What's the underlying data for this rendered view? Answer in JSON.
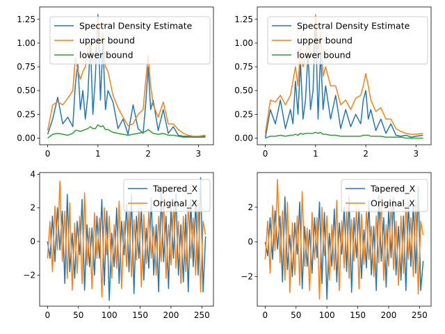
{
  "figure": {
    "background": "#ffffff"
  },
  "colors": {
    "blue": "#1f77b4",
    "orange": "#ff7f0e",
    "green": "#2ca02c"
  },
  "chart_data": [
    {
      "id": "psd-left",
      "type": "line",
      "title": "",
      "xlabel": "",
      "ylabel": "",
      "xlim": [
        -0.16,
        3.3
      ],
      "ylim": [
        -0.07,
        1.38
      ],
      "xticks": [
        0,
        1,
        2,
        3
      ],
      "xtick_labels": [
        "0",
        "1",
        "2",
        "3"
      ],
      "yticks": [
        0,
        0.25,
        0.5,
        0.75,
        1.0,
        1.25
      ],
      "ytick_labels": [
        "0.00",
        "0.25",
        "0.50",
        "0.75",
        "1.00",
        "1.25"
      ],
      "grid": false,
      "legend": "top-right",
      "x": [
        0.0,
        0.1,
        0.2,
        0.3,
        0.4,
        0.5,
        0.55,
        0.6,
        0.65,
        0.7,
        0.75,
        0.8,
        0.85,
        0.9,
        0.95,
        1.0,
        1.05,
        1.1,
        1.15,
        1.2,
        1.3,
        1.4,
        1.5,
        1.6,
        1.7,
        1.8,
        1.9,
        1.95,
        2.0,
        2.05,
        2.1,
        2.2,
        2.3,
        2.4,
        2.5,
        2.6,
        2.7,
        2.8,
        2.9,
        3.0,
        3.14
      ],
      "series": [
        {
          "name": "Spectral Density Estimate",
          "color": "#1f77b4",
          "values": [
            0.04,
            0.2,
            0.43,
            0.15,
            0.22,
            0.12,
            0.56,
            0.78,
            0.3,
            0.5,
            0.2,
            0.45,
            1.02,
            0.25,
            0.65,
            1.3,
            0.4,
            1.0,
            0.3,
            0.5,
            0.38,
            0.1,
            0.2,
            0.04,
            0.35,
            0.1,
            0.05,
            0.35,
            0.75,
            0.3,
            0.4,
            0.08,
            0.3,
            0.05,
            0.12,
            0.03,
            0.02,
            0.02,
            0.01,
            0.01,
            0.02
          ]
        },
        {
          "name": "upper bound",
          "color": "#ff7f0e",
          "values": [
            0.08,
            0.35,
            0.38,
            0.35,
            0.42,
            0.5,
            0.85,
            0.72,
            0.62,
            0.7,
            0.75,
            0.95,
            1.0,
            0.8,
            0.85,
            1.25,
            1.0,
            1.1,
            0.75,
            0.7,
            0.45,
            0.32,
            0.22,
            0.13,
            0.15,
            0.25,
            0.3,
            0.6,
            0.87,
            0.55,
            0.35,
            0.22,
            0.38,
            0.15,
            0.15,
            0.09,
            0.05,
            0.03,
            0.02,
            0.02,
            0.03
          ]
        },
        {
          "name": "lower bound",
          "color": "#2ca02c",
          "values": [
            0.0,
            0.04,
            0.05,
            0.04,
            0.03,
            0.05,
            0.08,
            0.08,
            0.07,
            0.08,
            0.09,
            0.1,
            0.12,
            0.1,
            0.1,
            0.14,
            0.12,
            0.13,
            0.09,
            0.09,
            0.06,
            0.05,
            0.04,
            0.03,
            0.04,
            0.05,
            0.06,
            0.07,
            0.09,
            0.07,
            0.05,
            0.04,
            0.05,
            0.03,
            0.03,
            0.02,
            0.01,
            0.01,
            0.01,
            0.01,
            0.01
          ]
        }
      ]
    },
    {
      "id": "psd-right",
      "type": "line",
      "title": "",
      "xlabel": "",
      "ylabel": "",
      "xlim": [
        -0.16,
        3.3
      ],
      "ylim": [
        -0.07,
        1.38
      ],
      "xticks": [
        0,
        1,
        2,
        3
      ],
      "xtick_labels": [
        "0",
        "1",
        "2",
        "3"
      ],
      "yticks": [
        0,
        0.25,
        0.5,
        0.75,
        1.0,
        1.25
      ],
      "ytick_labels": [
        "0.00",
        "0.25",
        "0.50",
        "0.75",
        "1.00",
        "1.25"
      ],
      "grid": false,
      "legend": "top-right",
      "x": [
        0.0,
        0.1,
        0.2,
        0.3,
        0.4,
        0.5,
        0.55,
        0.6,
        0.65,
        0.7,
        0.75,
        0.8,
        0.85,
        0.9,
        0.95,
        1.0,
        1.05,
        1.1,
        1.15,
        1.2,
        1.3,
        1.4,
        1.5,
        1.6,
        1.7,
        1.8,
        1.9,
        1.95,
        2.0,
        2.05,
        2.1,
        2.2,
        2.3,
        2.4,
        2.5,
        2.6,
        2.7,
        2.8,
        2.9,
        3.0,
        3.14
      ],
      "series": [
        {
          "name": "Spectral Density Estimate",
          "color": "#1f77b4",
          "values": [
            0.0,
            0.3,
            0.15,
            0.4,
            0.1,
            0.3,
            0.15,
            0.6,
            0.25,
            0.8,
            0.2,
            0.4,
            0.9,
            0.3,
            0.5,
            1.25,
            0.2,
            0.9,
            0.3,
            0.55,
            0.2,
            0.45,
            0.1,
            0.3,
            0.12,
            0.25,
            0.15,
            0.4,
            0.5,
            0.2,
            0.3,
            0.08,
            0.2,
            0.05,
            0.15,
            0.03,
            0.02,
            0.03,
            0.01,
            0.02,
            0.03
          ]
        },
        {
          "name": "upper bound",
          "color": "#ff7f0e",
          "values": [
            0.05,
            0.4,
            0.38,
            0.45,
            0.35,
            0.45,
            0.6,
            0.75,
            0.55,
            0.95,
            0.75,
            0.85,
            1.0,
            0.9,
            0.85,
            1.3,
            0.9,
            1.1,
            0.65,
            0.75,
            0.55,
            0.55,
            0.35,
            0.4,
            0.3,
            0.42,
            0.45,
            0.55,
            0.68,
            0.55,
            0.4,
            0.28,
            0.32,
            0.2,
            0.2,
            0.1,
            0.07,
            0.05,
            0.04,
            0.04,
            0.05
          ]
        },
        {
          "name": "lower bound",
          "color": "#2ca02c",
          "values": [
            0.0,
            0.02,
            0.02,
            0.03,
            0.02,
            0.03,
            0.03,
            0.04,
            0.03,
            0.05,
            0.04,
            0.05,
            0.05,
            0.05,
            0.05,
            0.06,
            0.05,
            0.06,
            0.04,
            0.04,
            0.03,
            0.03,
            0.02,
            0.02,
            0.02,
            0.02,
            0.02,
            0.03,
            0.03,
            0.03,
            0.02,
            0.02,
            0.02,
            0.01,
            0.01,
            0.01,
            0.01,
            0.0,
            0.0,
            0.0,
            0.0
          ]
        }
      ]
    },
    {
      "id": "signal-left",
      "type": "line",
      "title": "",
      "xlabel": "",
      "ylabel": "",
      "xlim": [
        -12.8,
        268.8
      ],
      "ylim": [
        -3.85,
        4.1
      ],
      "xticks": [
        0,
        50,
        100,
        150,
        200,
        250
      ],
      "xtick_labels": [
        "0",
        "50",
        "100",
        "150",
        "200",
        "250"
      ],
      "yticks": [
        -2,
        0,
        2,
        4
      ],
      "ytick_labels": [
        "−2",
        "0",
        "2",
        "4"
      ],
      "grid": false,
      "legend": "top-right",
      "x": [
        0,
        4,
        8,
        12,
        16,
        20,
        24,
        28,
        32,
        36,
        40,
        44,
        48,
        52,
        56,
        60,
        64,
        68,
        72,
        76,
        80,
        84,
        88,
        92,
        96,
        100,
        104,
        108,
        112,
        116,
        120,
        124,
        128,
        132,
        136,
        140,
        144,
        148,
        152,
        156,
        160,
        164,
        168,
        172,
        176,
        180,
        184,
        188,
        192,
        196,
        200,
        204,
        208,
        212,
        216,
        220,
        224,
        228,
        232,
        236,
        240,
        244,
        248,
        252,
        256
      ],
      "series": [
        {
          "name": "Tapered_X",
          "color": "#1f77b4",
          "values": [
            0.0,
            -1.0,
            1.5,
            -1.2,
            2.0,
            -0.5,
            1.8,
            -2.5,
            2.8,
            -1.8,
            0.5,
            -2.2,
            1.2,
            -0.8,
            2.5,
            -2.9,
            1.0,
            -1.5,
            0.8,
            -2.0,
            1.5,
            -1.0,
            2.5,
            -2.6,
            1.8,
            -3.5,
            0.5,
            -1.5,
            2.0,
            -2.5,
            1.2,
            -0.8,
            2.2,
            -1.8,
            2.8,
            -3.1,
            1.5,
            -1.0,
            2.0,
            -2.3,
            0.8,
            -1.6,
            2.6,
            -2.0,
            1.0,
            -3.0,
            2.9,
            -1.2,
            1.5,
            -2.8,
            2.0,
            -1.0,
            2.8,
            -2.0,
            1.0,
            -2.4,
            1.6,
            -3.0,
            2.5,
            -1.5,
            2.4,
            -2.0,
            3.8,
            -3.0,
            0.3
          ]
        },
        {
          "name": "Original_X",
          "color": "#ff7f0e",
          "values": [
            -1.0,
            1.2,
            -1.8,
            2.1,
            -0.5,
            3.6,
            -1.2,
            1.8,
            -2.2,
            2.3,
            -2.9,
            1.1,
            -1.9,
            1.5,
            -2.5,
            2.9,
            -1.4,
            0.8,
            -2.8,
            1.7,
            -1.0,
            1.4,
            -3.3,
            2.0,
            -0.8,
            1.5,
            -2.2,
            1.0,
            -1.6,
            2.4,
            -2.8,
            1.2,
            -1.5,
            1.8,
            -2.1,
            1.3,
            -1.1,
            2.0,
            -2.7,
            1.6,
            -1.3,
            1.8,
            -1.0,
            0.9,
            -2.0,
            1.5,
            -1.2,
            2.6,
            -2.2,
            1.0,
            -1.4,
            2.3,
            -1.6,
            1.2,
            -2.5,
            1.5,
            -1.8,
            2.2,
            -1.0,
            1.4,
            -2.0,
            2.4,
            -3.0,
            1.2,
            0.4
          ]
        }
      ]
    },
    {
      "id": "signal-right",
      "type": "line",
      "title": "",
      "xlabel": "",
      "ylabel": "",
      "xlim": [
        -12.8,
        268.8
      ],
      "ylim": [
        -3.7,
        4.0
      ],
      "xticks": [
        0,
        50,
        100,
        150,
        200,
        250
      ],
      "xtick_labels": [
        "0",
        "50",
        "100",
        "150",
        "200",
        "250"
      ],
      "yticks": [
        -2,
        0,
        2
      ],
      "ytick_labels": [
        "−2",
        "0",
        "2"
      ],
      "grid": false,
      "legend": "top-right",
      "x": [
        0,
        4,
        8,
        12,
        16,
        20,
        24,
        28,
        32,
        36,
        40,
        44,
        48,
        52,
        56,
        60,
        64,
        68,
        72,
        76,
        80,
        84,
        88,
        92,
        96,
        100,
        104,
        108,
        112,
        116,
        120,
        124,
        128,
        132,
        136,
        140,
        144,
        148,
        152,
        156,
        160,
        164,
        168,
        172,
        176,
        180,
        184,
        188,
        192,
        196,
        200,
        204,
        208,
        212,
        216,
        220,
        224,
        228,
        232,
        236,
        240,
        244,
        248,
        252,
        256
      ],
      "series": [
        {
          "name": "Tapered_X",
          "color": "#1f77b4",
          "values": [
            0.0,
            -0.8,
            1.4,
            -1.0,
            1.8,
            -0.4,
            1.5,
            -2.3,
            2.6,
            -1.6,
            0.4,
            -2.0,
            1.1,
            -0.7,
            2.3,
            -2.7,
            0.9,
            -1.4,
            0.7,
            -1.8,
            1.4,
            -0.9,
            2.3,
            -2.4,
            1.7,
            -3.3,
            0.5,
            -1.4,
            1.9,
            -2.3,
            1.1,
            -0.7,
            2.0,
            -1.7,
            2.6,
            -2.9,
            1.4,
            -0.9,
            1.9,
            -2.1,
            0.7,
            -1.5,
            2.4,
            -1.9,
            0.9,
            -2.8,
            2.7,
            -1.1,
            1.4,
            -2.6,
            1.9,
            -0.9,
            2.6,
            -1.9,
            0.9,
            -2.2,
            1.5,
            -2.8,
            2.3,
            -1.4,
            2.2,
            -1.8,
            3.2,
            -2.8,
            -1.1
          ]
        },
        {
          "name": "Original_X",
          "color": "#ff7f0e",
          "values": [
            -1.0,
            1.2,
            -1.8,
            2.1,
            -0.5,
            3.6,
            -1.2,
            1.8,
            -2.2,
            2.3,
            -2.9,
            1.1,
            -1.9,
            1.5,
            -2.5,
            2.9,
            -1.4,
            0.8,
            -2.8,
            1.7,
            -1.0,
            1.4,
            -3.3,
            2.0,
            -0.8,
            1.5,
            -2.2,
            1.0,
            -1.6,
            2.4,
            -2.8,
            1.2,
            -1.5,
            1.8,
            -2.1,
            1.3,
            -1.1,
            2.0,
            -2.7,
            1.6,
            -1.3,
            1.8,
            -1.0,
            0.9,
            -2.0,
            1.5,
            -1.2,
            2.6,
            -2.2,
            1.0,
            -1.4,
            2.3,
            -1.6,
            1.2,
            -2.5,
            1.5,
            -1.8,
            2.2,
            -1.0,
            1.4,
            -2.0,
            2.4,
            -3.0,
            1.2,
            0.4
          ]
        }
      ]
    }
  ]
}
